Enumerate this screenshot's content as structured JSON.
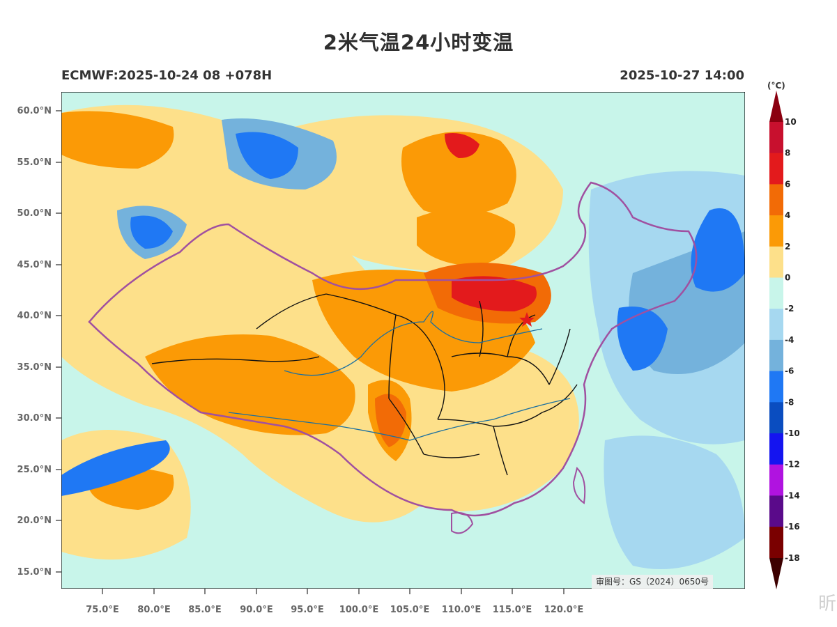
{
  "header": {
    "title": "2米气温24小时变温",
    "model_run": "ECMWF:2025-10-24 08 +078H",
    "valid_time": "2025-10-27 14:00"
  },
  "axes": {
    "lat_labels": [
      "60.0°N",
      "55.0°N",
      "50.0°N",
      "45.0°N",
      "40.0°N",
      "35.0°N",
      "30.0°N",
      "25.0°N",
      "20.0°N",
      "15.0°N"
    ],
    "lon_labels": [
      "75.0°E",
      "80.0°E",
      "85.0°E",
      "90.0°E",
      "95.0°E",
      "100.0°E",
      "105.0°E",
      "110.0°E",
      "115.0°E",
      "120.0°E"
    ]
  },
  "colorbar": {
    "unit": "(°C)",
    "labels": [
      "10",
      "8",
      "6",
      "4",
      "2",
      "0",
      "-2",
      "-4",
      "-6",
      "-8",
      "-10",
      "-12",
      "-14",
      "-16",
      "-18"
    ],
    "colors": [
      "#c8102e",
      "#e31a1c",
      "#f26b06",
      "#fb9a06",
      "#fde08a",
      "#c8f5ea",
      "#a6d8f0",
      "#74b2dc",
      "#1f78f4",
      "#0a4dc0",
      "#1414f0",
      "#b013e0",
      "#5a0a8a",
      "#7a0000"
    ],
    "top_cap_color": "#8b0010",
    "bottom_cap_color": "#3d0000"
  },
  "map_colors": {
    "background": "#c8f5ea",
    "warm_light": "#fde08a",
    "warm_mid": "#fb9a06",
    "warm_high": "#f26b06",
    "warm_peak": "#e31a1c",
    "cold_light": "#a6d8f0",
    "cold_mid": "#74b2dc",
    "cold_deep": "#1f78f4",
    "boundary": "#a050a0",
    "province": "#111111",
    "river": "#1a6fa0"
  },
  "approval_text": "审图号：GS（2024）0650号",
  "watermark": "昕"
}
